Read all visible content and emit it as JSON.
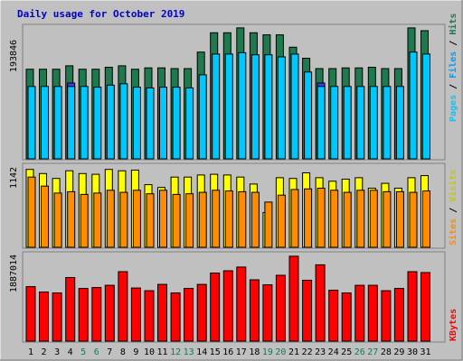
{
  "colors": {
    "background": "#c0c0c0",
    "title": "#0000c8",
    "hits": "#1e7a4e",
    "files": "#00c8ff",
    "pages": "#3c3cff",
    "visits": "#ffff00",
    "sites": "#ff8c00",
    "kbytes": "#ff0000",
    "weekend_label": "#137a57"
  },
  "chart_data": {
    "type": "bar",
    "title": "Daily usage for October 2019",
    "categories": [
      "1",
      "2",
      "3",
      "4",
      "5",
      "6",
      "7",
      "8",
      "9",
      "10",
      "11",
      "12",
      "13",
      "14",
      "15",
      "16",
      "17",
      "18",
      "19",
      "20",
      "21",
      "22",
      "23",
      "24",
      "25",
      "26",
      "27",
      "28",
      "29",
      "30",
      "31"
    ],
    "weekend_days": [
      "5",
      "6",
      "12",
      "13",
      "19",
      "20",
      "26",
      "27"
    ],
    "panels": [
      {
        "name": "top",
        "y_max_label": "193846",
        "y_max": 193846,
        "legend": [
          "Pages",
          "Files",
          "Hits"
        ],
        "series": [
          {
            "name": "Hits",
            "values": [
              130000,
              130000,
              130000,
              135000,
              130000,
              130000,
              133000,
              135000,
              130000,
              132000,
              132000,
              131000,
              131000,
              155000,
              183000,
              183000,
              190000,
              183000,
              180000,
              180000,
              162000,
              146000,
              131000,
              131000,
              132000,
              132000,
              133000,
              131000,
              131000,
              190000,
              186000
            ]
          },
          {
            "name": "Files",
            "values": [
              105000,
              105000,
              105000,
              105000,
              105000,
              104000,
              107000,
              109000,
              104000,
              103000,
              104000,
              104000,
              103000,
              122000,
              152000,
              152000,
              154000,
              151000,
              151000,
              148000,
              152000,
              126000,
              105000,
              105000,
              105000,
              105000,
              105000,
              105000,
              105000,
              155000,
              152000
            ]
          },
          {
            "name": "Pages",
            "values": [
              0,
              0,
              0,
              110000,
              0,
              0,
              0,
              0,
              0,
              0,
              0,
              0,
              0,
              0,
              0,
              0,
              0,
              0,
              0,
              0,
              0,
              0,
              110000,
              0,
              0,
              0,
              0,
              0,
              0,
              0,
              0
            ]
          }
        ]
      },
      {
        "name": "middle",
        "y_max_label": "1142",
        "y_max": 1142,
        "legend": [
          "Sites",
          "Visits"
        ],
        "series": [
          {
            "name": "Visits",
            "values": [
              1120,
              1060,
              990,
              1100,
              1060,
              1050,
              1120,
              1100,
              1110,
              900,
              860,
              1010,
              1010,
              1040,
              1050,
              1040,
              1010,
              910,
              500,
              1000,
              990,
              1070,
              1000,
              950,
              980,
              1000,
              850,
              920,
              850,
              1000,
              1030
            ]
          },
          {
            "name": "Sites",
            "values": [
              1010,
              880,
              780,
              800,
              760,
              780,
              820,
              790,
              820,
              770,
              820,
              760,
              770,
              790,
              820,
              810,
              800,
              790,
              650,
              750,
              830,
              840,
              850,
              820,
              790,
              820,
              820,
              800,
              800,
              790,
              810
            ]
          }
        ]
      },
      {
        "name": "bottom",
        "y_max_label": "1887014",
        "y_max": 1887014,
        "legend": [
          "KBytes"
        ],
        "series": [
          {
            "name": "KBytes",
            "values": [
              1200000,
              1080000,
              1060000,
              1400000,
              1160000,
              1180000,
              1230000,
              1530000,
              1170000,
              1110000,
              1250000,
              1060000,
              1160000,
              1250000,
              1500000,
              1550000,
              1630000,
              1350000,
              1240000,
              1450000,
              1870000,
              1340000,
              1680000,
              1120000,
              1060000,
              1230000,
              1230000,
              1110000,
              1160000,
              1530000,
              1510000
            ]
          }
        ]
      }
    ]
  }
}
